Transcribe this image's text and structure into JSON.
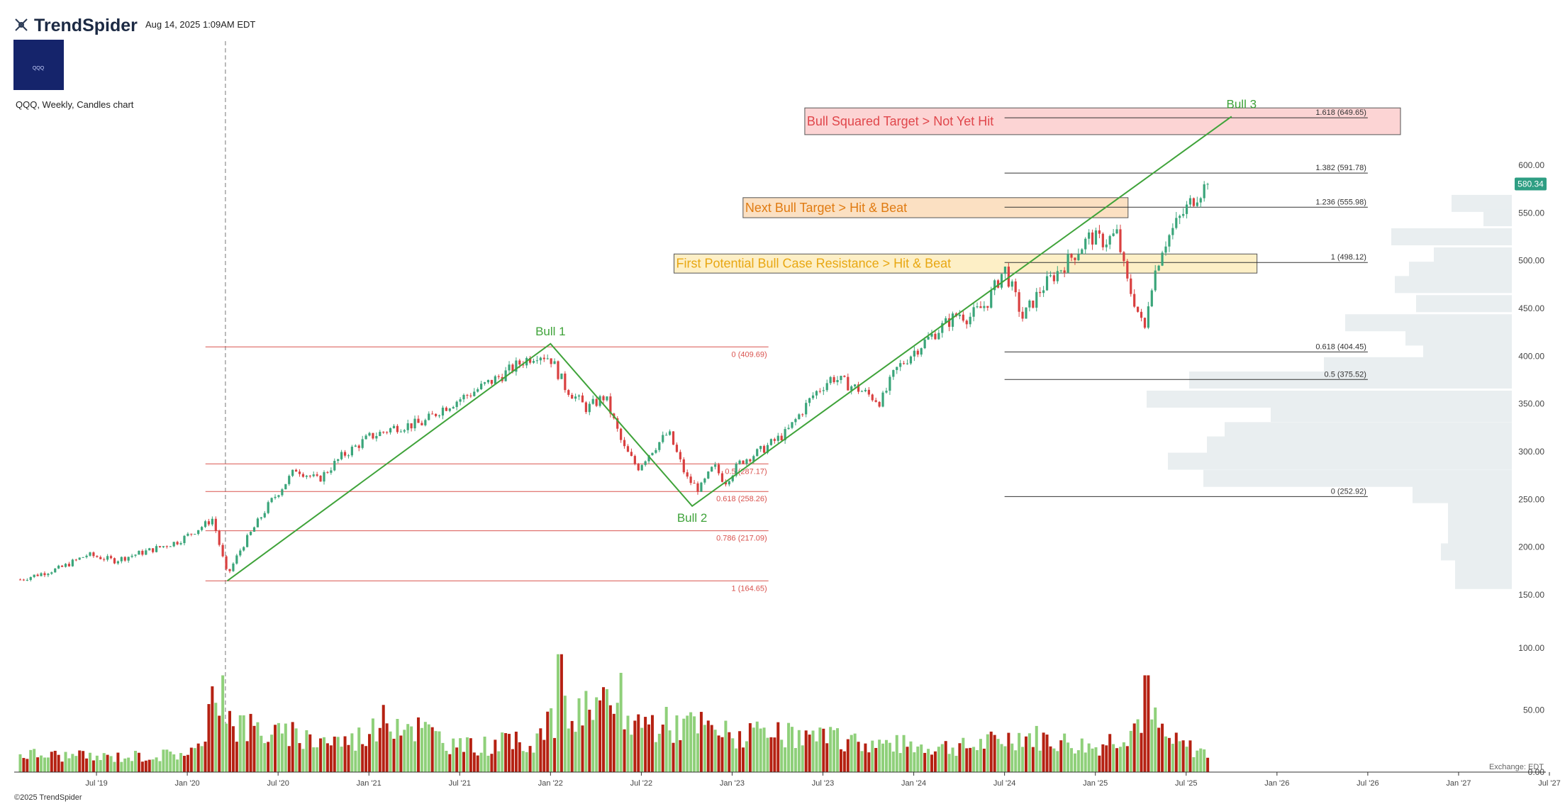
{
  "header": {
    "brand": "TrendSpider",
    "datetime": "Aug 14, 2025 1:09AM EDT",
    "chart_desc": "QQQ, Weekly, Candles chart",
    "logo_text": "QQQ"
  },
  "footer": {
    "copyright": "©2025 TrendSpider",
    "exchange": "Exchange: EDT"
  },
  "colors": {
    "up": "#3aa57a",
    "down": "#d94040",
    "vol_up": "#8fd07a",
    "vol_down": "#b52112",
    "trend": "#3fa33a",
    "fib_red": "#d9534f",
    "fib_dark": "#333333",
    "box_red_fill": "#fcd4d4",
    "box_orange_fill": "#fbe0c2",
    "box_yellow_fill": "#fdefc6",
    "box_red_text": "#e0464b",
    "box_orange_text": "#e07b12",
    "box_yellow_text": "#e8a712",
    "profile": "#e9eef0",
    "price_badge": "#2e9e83",
    "logo_bg": "#15246b"
  },
  "chart_data": {
    "type": "candlestick",
    "ticker": "QQQ",
    "timeframe": "Weekly",
    "x_ticks": [
      "Jul '19",
      "Jan '20",
      "Jul '20",
      "Jan '21",
      "Jul '21",
      "Jan '22",
      "Jul '22",
      "Jan '23",
      "Jul '23",
      "Jan '24",
      "Jul '24",
      "Jan '25",
      "Jul '25",
      "Jan '26",
      "Jul '26",
      "Jan '27",
      "Jul '27"
    ],
    "x_tick_years": [
      2019.5,
      2020.0,
      2020.5,
      2021.0,
      2021.5,
      2022.0,
      2022.5,
      2023.0,
      2023.5,
      2024.0,
      2024.5,
      2025.0,
      2025.5,
      2026.0,
      2026.5,
      2027.0,
      2027.5
    ],
    "y_ticks": [
      "600.00",
      "550.00",
      "500.00",
      "450.00",
      "400.00",
      "350.00",
      "300.00",
      "250.00",
      "200.00",
      "150.00"
    ],
    "y_values": [
      600,
      550,
      500,
      450,
      400,
      350,
      300,
      250,
      200,
      150
    ],
    "vol_ticks": [
      "100.00",
      "50.00",
      "0.00"
    ],
    "vol_values": [
      100,
      50,
      0
    ],
    "current_price": "580.34",
    "price_anchors": [
      [
        2019.08,
        166
      ],
      [
        2019.3,
        178
      ],
      [
        2019.45,
        192
      ],
      [
        2019.6,
        186
      ],
      [
        2019.8,
        197
      ],
      [
        2019.95,
        206
      ],
      [
        2020.1,
        224
      ],
      [
        2020.14,
        230
      ],
      [
        2020.22,
        170
      ],
      [
        2020.3,
        200
      ],
      [
        2020.45,
        245
      ],
      [
        2020.6,
        282
      ],
      [
        2020.72,
        270
      ],
      [
        2020.85,
        295
      ],
      [
        2021.0,
        315
      ],
      [
        2021.15,
        326
      ],
      [
        2021.3,
        330
      ],
      [
        2021.4,
        345
      ],
      [
        2021.55,
        360
      ],
      [
        2021.75,
        382
      ],
      [
        2021.85,
        395
      ],
      [
        2021.93,
        403
      ],
      [
        2022.0,
        398
      ],
      [
        2022.08,
        368
      ],
      [
        2022.2,
        345
      ],
      [
        2022.3,
        358
      ],
      [
        2022.4,
        305
      ],
      [
        2022.48,
        283
      ],
      [
        2022.55,
        300
      ],
      [
        2022.65,
        320
      ],
      [
        2022.75,
        272
      ],
      [
        2022.82,
        260
      ],
      [
        2022.9,
        285
      ],
      [
        2022.96,
        268
      ],
      [
        2023.05,
        290
      ],
      [
        2023.15,
        300
      ],
      [
        2023.3,
        320
      ],
      [
        2023.45,
        360
      ],
      [
        2023.55,
        378
      ],
      [
        2023.7,
        365
      ],
      [
        2023.82,
        352
      ],
      [
        2023.9,
        385
      ],
      [
        2024.0,
        405
      ],
      [
        2024.15,
        430
      ],
      [
        2024.25,
        445
      ],
      [
        2024.3,
        440
      ],
      [
        2024.4,
        455
      ],
      [
        2024.5,
        492
      ],
      [
        2024.6,
        440
      ],
      [
        2024.7,
        470
      ],
      [
        2024.8,
        490
      ],
      [
        2024.9,
        510
      ],
      [
        2024.97,
        525
      ],
      [
        2025.05,
        520
      ],
      [
        2025.12,
        528
      ],
      [
        2025.17,
        480
      ],
      [
        2025.22,
        455
      ],
      [
        2025.27,
        425
      ],
      [
        2025.3,
        470
      ],
      [
        2025.37,
        515
      ],
      [
        2025.45,
        540
      ],
      [
        2025.55,
        568
      ],
      [
        2025.62,
        580.34
      ]
    ],
    "volume_anchors": [
      [
        2019.08,
        15
      ],
      [
        2019.5,
        12
      ],
      [
        2019.9,
        14
      ],
      [
        2020.1,
        20
      ],
      [
        2020.15,
        75
      ],
      [
        2020.25,
        40
      ],
      [
        2020.5,
        30
      ],
      [
        2020.9,
        25
      ],
      [
        2021.15,
        45
      ],
      [
        2021.5,
        20
      ],
      [
        2021.9,
        25
      ],
      [
        2022.05,
        45
      ],
      [
        2022.3,
        50
      ],
      [
        2022.5,
        40
      ],
      [
        2022.8,
        38
      ],
      [
        2023.0,
        30
      ],
      [
        2023.4,
        28
      ],
      [
        2023.9,
        22
      ],
      [
        2024.3,
        20
      ],
      [
        2024.6,
        30
      ],
      [
        2025.0,
        20
      ],
      [
        2025.2,
        35
      ],
      [
        2025.28,
        50
      ],
      [
        2025.4,
        25
      ],
      [
        2025.62,
        15
      ]
    ],
    "volume_spikes": [
      [
        2022.05,
        95
      ],
      [
        2025.28,
        78
      ],
      [
        2022.38,
        80
      ],
      [
        2020.2,
        78
      ]
    ],
    "volume_profile": [
      [
        560,
        85
      ],
      [
        545,
        40
      ],
      [
        525,
        170
      ],
      [
        505,
        110
      ],
      [
        490,
        145
      ],
      [
        475,
        165
      ],
      [
        455,
        135
      ],
      [
        435,
        235
      ],
      [
        420,
        150
      ],
      [
        405,
        125
      ],
      [
        390,
        265
      ],
      [
        375,
        455
      ],
      [
        355,
        515
      ],
      [
        340,
        340
      ],
      [
        322,
        405
      ],
      [
        307,
        430
      ],
      [
        290,
        485
      ],
      [
        272,
        435
      ],
      [
        255,
        140
      ],
      [
        240,
        90
      ],
      [
        225,
        90
      ],
      [
        210,
        90
      ],
      [
        195,
        100
      ],
      [
        180,
        80
      ],
      [
        165,
        80
      ]
    ],
    "fib_red": {
      "labels": [
        {
          "text": "0 (409.69)",
          "value": 409.69
        },
        {
          "text": "0.5 (287.17)",
          "value": 287.17
        },
        {
          "text": "0.618 (258.26)",
          "value": 258.26
        },
        {
          "text": "0.786 (217.09)",
          "value": 217.09
        },
        {
          "text": "1 (164.65)",
          "value": 164.65
        }
      ],
      "x_from": 2020.1,
      "x_to": 2023.2
    },
    "fib_dark": {
      "labels": [
        {
          "text": "1.618 (649.65)",
          "value": 649.65
        },
        {
          "text": "1.382 (591.78)",
          "value": 591.78
        },
        {
          "text": "1.236 (555.98)",
          "value": 555.98
        },
        {
          "text": "1 (498.12)",
          "value": 498.12
        },
        {
          "text": "0.618 (404.45)",
          "value": 404.45
        },
        {
          "text": "0.5 (375.52)",
          "value": 375.52
        },
        {
          "text": "0 (252.92)",
          "value": 252.92
        }
      ],
      "x_from": 2024.5,
      "x_to": 2026.5
    },
    "trend_points": [
      {
        "x": 2020.22,
        "y": 164.65,
        "label": ""
      },
      {
        "x": 2022.0,
        "y": 413,
        "label": "Bull 1"
      },
      {
        "x": 2022.78,
        "y": 243,
        "label": "Bull 2"
      },
      {
        "x": 2025.75,
        "y": 651,
        "label": "Bull 3"
      }
    ],
    "zones": [
      {
        "label": "Bull Squared Target > Not Yet Hit",
        "x_from": 2023.4,
        "x_to": 2026.68,
        "y_top": 660,
        "y_bottom": 632,
        "style": "red"
      },
      {
        "label": "Next Bull Target > Hit & Beat",
        "x_from": 2023.06,
        "x_to": 2025.18,
        "y_top": 566,
        "y_bottom": 545,
        "style": "orange"
      },
      {
        "label": "First Potential Bull Case Resistance > Hit & Beat",
        "x_from": 2022.68,
        "x_to": 2025.89,
        "y_top": 507,
        "y_bottom": 487,
        "style": "yellow"
      }
    ],
    "crosshair_x": 2020.21
  }
}
